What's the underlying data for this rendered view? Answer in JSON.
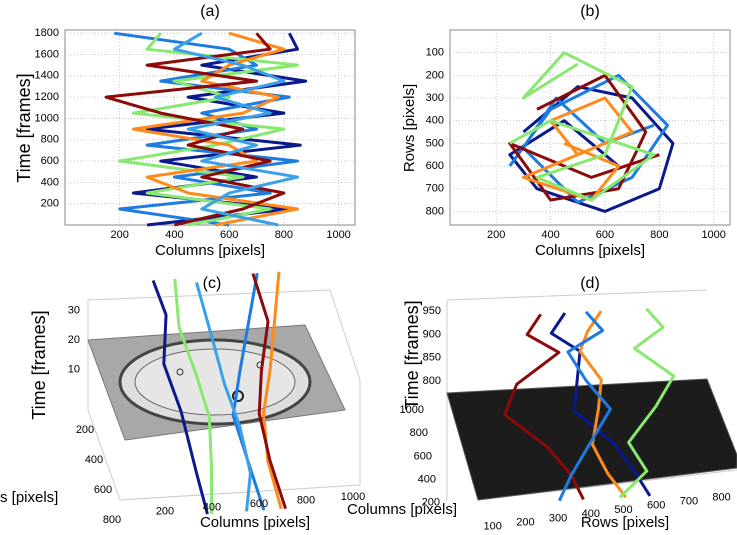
{
  "chart_data": [
    {
      "type": "line",
      "title": "(a)",
      "xlabel": "Columns [pixels]",
      "ylabel": "Time [frames]",
      "xlim": [
        0,
        1060
      ],
      "ylim": [
        0,
        1830
      ],
      "xticks": [
        200,
        400,
        600,
        800,
        1000
      ],
      "yticks": [
        200,
        400,
        600,
        800,
        1000,
        1200,
        1400,
        1600,
        1800
      ],
      "grid": true,
      "series": [
        {
          "color": "#0a1a8c",
          "x": [
            300,
            820,
            250,
            700,
            350,
            860,
            300,
            800,
            450,
            880,
            500,
            850,
            820
          ],
          "y": [
            0,
            150,
            300,
            450,
            600,
            750,
            900,
            1050,
            1200,
            1350,
            1500,
            1650,
            1800
          ]
        },
        {
          "color": "#1e7be0",
          "x": [
            600,
            200,
            750,
            400,
            850,
            300,
            700,
            500,
            820,
            350,
            700,
            600,
            180
          ],
          "y": [
            0,
            150,
            300,
            450,
            600,
            750,
            900,
            1050,
            1200,
            1350,
            1500,
            1650,
            1800
          ]
        },
        {
          "color": "#88e870",
          "x": [
            450,
            750,
            300,
            650,
            200,
            550,
            800,
            250,
            600,
            400,
            850,
            300,
            350
          ],
          "y": [
            0,
            150,
            300,
            450,
            600,
            750,
            900,
            1050,
            1200,
            1350,
            1500,
            1650,
            1800
          ]
        },
        {
          "color": "#ff8a1c",
          "x": [
            550,
            850,
            450,
            300,
            700,
            600,
            250,
            650,
            780,
            500,
            600,
            800,
            600
          ],
          "y": [
            0,
            150,
            300,
            450,
            600,
            750,
            900,
            1050,
            1200,
            1350,
            1500,
            1650,
            1800
          ]
        },
        {
          "color": "#8b0a0a",
          "x": [
            400,
            650,
            800,
            500,
            750,
            450,
            650,
            350,
            150,
            700,
            300,
            750,
            700
          ],
          "y": [
            0,
            150,
            300,
            450,
            600,
            750,
            900,
            1050,
            1200,
            1350,
            1500,
            1650,
            1800
          ]
        },
        {
          "color": "#3aa0e8",
          "x": [
            780,
            500,
            600,
            850,
            500,
            700,
            450,
            750,
            550,
            800,
            650,
            400,
            500
          ],
          "y": [
            0,
            150,
            300,
            450,
            600,
            750,
            900,
            1050,
            1200,
            1350,
            1500,
            1650,
            1800
          ]
        }
      ]
    },
    {
      "type": "line",
      "title": "(b)",
      "xlabel": "Columns [pixels]",
      "ylabel": "Rows [pixels]",
      "xlim": [
        30,
        1060
      ],
      "ylim": [
        860,
        0
      ],
      "xticks": [
        200,
        400,
        600,
        800,
        1000
      ],
      "yticks": [
        100,
        200,
        300,
        400,
        500,
        600,
        700,
        800
      ],
      "grid": true,
      "series": [
        {
          "color": "#0a1a8c",
          "x": [
            300,
            500,
            700,
            850,
            800,
            600,
            350,
            250,
            450,
            650
          ],
          "y": [
            450,
            250,
            300,
            500,
            700,
            800,
            700,
            550,
            400,
            600
          ]
        },
        {
          "color": "#1e7be0",
          "x": [
            250,
            400,
            650,
            830,
            700,
            500,
            300,
            420,
            600,
            780
          ],
          "y": [
            600,
            350,
            200,
            420,
            650,
            760,
            520,
            300,
            500,
            420
          ]
        },
        {
          "color": "#8b0a0a",
          "x": [
            350,
            600,
            750,
            650,
            400,
            250,
            550,
            800
          ],
          "y": [
            350,
            200,
            450,
            700,
            750,
            500,
            650,
            550
          ]
        },
        {
          "color": "#ff8a1c",
          "x": [
            450,
            650,
            550,
            300,
            700,
            600,
            400,
            500
          ],
          "y": [
            500,
            600,
            750,
            650,
            450,
            300,
            400,
            550
          ]
        },
        {
          "color": "#88e870",
          "x": [
            500,
            300,
            450,
            700,
            600,
            350,
            550,
            780,
            400,
            250
          ],
          "y": [
            150,
            300,
            100,
            250,
            550,
            650,
            750,
            550,
            400,
            500
          ]
        }
      ]
    },
    {
      "type": "line3d",
      "title": "(c)",
      "xlabel": "Columns [pixels]",
      "ylabel": "s [pixels]",
      "zlabel": "Time [frames]",
      "xticks": [
        200,
        400,
        600,
        800,
        1000
      ],
      "yticks": [
        200,
        400,
        600,
        800
      ],
      "zticks": [
        10,
        20,
        30
      ],
      "series": [
        {
          "color": "#0a1a8c",
          "columns": [
            300,
            330,
            280,
            320,
            350,
            380
          ],
          "rows": [
            0,
            150,
            350,
            550,
            750,
            860
          ],
          "time": [
            32,
            25,
            15,
            5,
            -10,
            -22
          ]
        },
        {
          "color": "#88e870",
          "columns": [
            400,
            380,
            420,
            450,
            430,
            400
          ],
          "rows": [
            0,
            200,
            400,
            550,
            700,
            860
          ],
          "time": [
            32,
            22,
            12,
            2,
            -10,
            -22
          ]
        },
        {
          "color": "#1e7be0",
          "columns": [
            780,
            700,
            620,
            560,
            600,
            640
          ],
          "rows": [
            0,
            200,
            400,
            550,
            700,
            860
          ],
          "time": [
            32,
            22,
            12,
            2,
            -10,
            -22
          ]
        },
        {
          "color": "#ff8a1c",
          "columns": [
            880,
            820,
            760,
            700,
            690,
            720
          ],
          "rows": [
            0,
            200,
            400,
            550,
            700,
            860
          ],
          "time": [
            32,
            22,
            12,
            2,
            -10,
            -22
          ]
        },
        {
          "color": "#8b0a0a",
          "columns": [
            760,
            790,
            720,
            680,
            700,
            740
          ],
          "rows": [
            0,
            200,
            400,
            550,
            700,
            860
          ],
          "time": [
            32,
            22,
            12,
            2,
            -10,
            -22
          ]
        },
        {
          "color": "#3aa0e8",
          "columns": [
            500,
            520,
            540,
            580,
            600,
            560
          ],
          "rows": [
            0,
            250,
            450,
            600,
            750,
            860
          ],
          "time": [
            30,
            20,
            10,
            0,
            -12,
            -22
          ]
        }
      ]
    },
    {
      "type": "line3d",
      "title": "(d)",
      "xlabel": "Rows [pixels]",
      "ylabel": "Columns [pixels]",
      "zlabel": "Time [frames]",
      "xticks": [
        100,
        200,
        300,
        400,
        500,
        600,
        700,
        800
      ],
      "yticks": [
        200,
        400,
        600,
        800,
        1000
      ],
      "zticks": [
        800,
        850,
        900,
        950
      ],
      "series": [
        {
          "color": "#8b0a0a",
          "rows": [
            300,
            250,
            350,
            200,
            150,
            280,
            350,
            380
          ],
          "columns": [
            900,
            850,
            800,
            700,
            600,
            500,
            400,
            300
          ],
          "time": [
            960,
            930,
            900,
            860,
            820,
            770,
            730,
            700
          ]
        },
        {
          "color": "#0a1a8c",
          "rows": [
            380,
            330,
            420,
            400,
            380,
            500,
            560,
            600
          ],
          "columns": [
            900,
            850,
            800,
            700,
            600,
            500,
            400,
            300
          ],
          "time": [
            960,
            930,
            900,
            860,
            820,
            770,
            730,
            700
          ]
        },
        {
          "color": "#ff8a1c",
          "rows": [
            500,
            450,
            420,
            480,
            460,
            430,
            470,
            520
          ],
          "columns": [
            900,
            850,
            800,
            700,
            600,
            500,
            400,
            300
          ],
          "time": [
            960,
            930,
            900,
            860,
            820,
            770,
            730,
            700
          ]
        },
        {
          "color": "#1e7be0",
          "rows": [
            450,
            500,
            380,
            430,
            500,
            420,
            350,
            300
          ],
          "columns": [
            900,
            850,
            800,
            700,
            600,
            500,
            400,
            300
          ],
          "time": [
            960,
            930,
            900,
            860,
            820,
            770,
            730,
            700
          ]
        },
        {
          "color": "#88e870",
          "rows": [
            650,
            700,
            600,
            720,
            650,
            550,
            600,
            500
          ],
          "columns": [
            900,
            850,
            800,
            700,
            600,
            500,
            400,
            300
          ],
          "time": [
            960,
            930,
            900,
            860,
            820,
            770,
            730,
            700
          ]
        }
      ]
    }
  ]
}
